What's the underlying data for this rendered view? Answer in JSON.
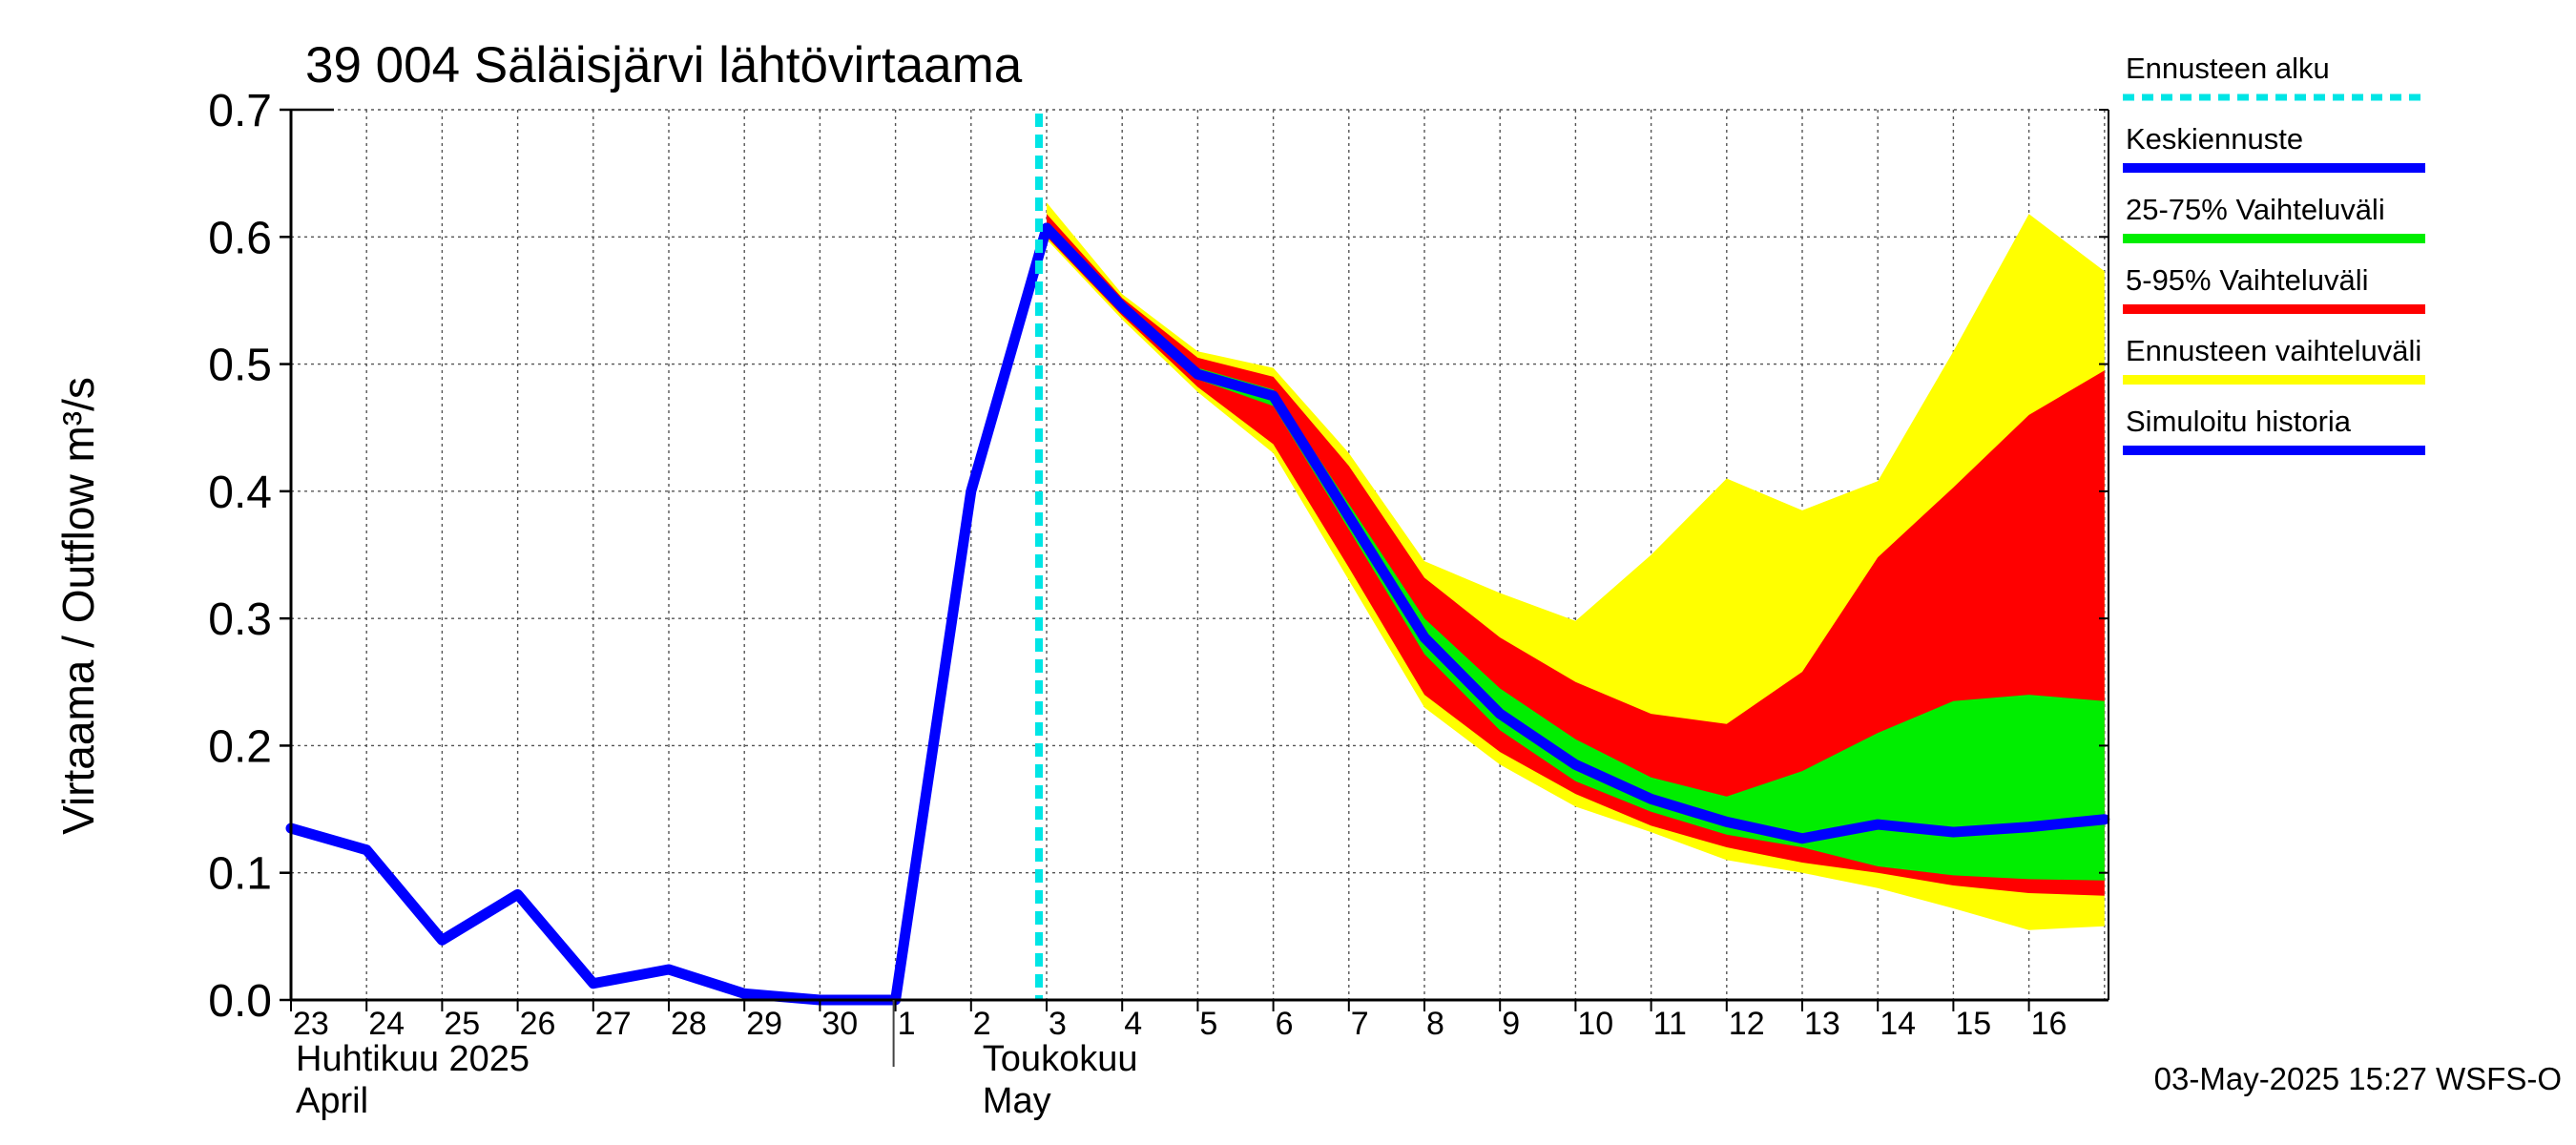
{
  "chart_data": {
    "type": "area",
    "title": "39 004 Säläisjärvi lähtövirtaama",
    "ylabel": "Virtaama / Outflow    m³/s",
    "xlabel": "",
    "ylim": [
      0,
      0.7
    ],
    "yticks": [
      "0.0",
      "0.1",
      "0.2",
      "0.3",
      "0.4",
      "0.5",
      "0.6",
      "0.7"
    ],
    "grid": true,
    "legend_position": "right",
    "x_labels": [
      "23",
      "24",
      "25",
      "26",
      "27",
      "28",
      "29",
      "30",
      "1",
      "2",
      "3",
      "4",
      "5",
      "6",
      "7",
      "8",
      "9",
      "10",
      "11",
      "12",
      "13",
      "14",
      "15",
      "16"
    ],
    "month_labels": [
      {
        "line1": "Huhtikuu  2025",
        "line2": "April"
      },
      {
        "line1": "Toukokuu",
        "line2": "May"
      }
    ],
    "forecast_start": "3",
    "series": [
      {
        "name": "Simuloitu historia",
        "color": "#0000ff",
        "x": [
          "23",
          "24",
          "25",
          "26",
          "27",
          "28",
          "29",
          "30",
          "1",
          "2",
          "3"
        ],
        "values": [
          0.135,
          0.118,
          0.047,
          0.083,
          0.013,
          0.024,
          0.005,
          0.0,
          0.0,
          0.4,
          0.607
        ]
      },
      {
        "name": "Keskiennuste",
        "color": "#0000ff",
        "x": [
          "3",
          "4",
          "5",
          "6",
          "7",
          "8",
          "9",
          "10",
          "11",
          "12",
          "13",
          "14",
          "15",
          "16",
          "17"
        ],
        "values": [
          0.607,
          0.545,
          0.492,
          0.475,
          0.38,
          0.285,
          0.225,
          0.185,
          0.158,
          0.14,
          0.127,
          0.138,
          0.132,
          0.136,
          0.142
        ]
      },
      {
        "name": "25-75% Vaihteluväli",
        "color": "#00ee00",
        "x": [
          "3",
          "4",
          "5",
          "6",
          "7",
          "8",
          "9",
          "10",
          "11",
          "12",
          "13",
          "14",
          "15",
          "16",
          "17"
        ],
        "upper": [
          0.61,
          0.547,
          0.497,
          0.48,
          0.39,
          0.3,
          0.245,
          0.205,
          0.175,
          0.16,
          0.18,
          0.21,
          0.235,
          0.24,
          0.235
        ],
        "lower": [
          0.604,
          0.542,
          0.488,
          0.467,
          0.37,
          0.272,
          0.212,
          0.172,
          0.148,
          0.13,
          0.12,
          0.105,
          0.098,
          0.095,
          0.094
        ]
      },
      {
        "name": "5-95% Vaihteluväli",
        "color": "#ff0000",
        "x": [
          "3",
          "4",
          "5",
          "6",
          "7",
          "8",
          "9",
          "10",
          "11",
          "12",
          "13",
          "14",
          "15",
          "16",
          "17"
        ],
        "upper": [
          0.618,
          0.552,
          0.505,
          0.49,
          0.42,
          0.332,
          0.285,
          0.25,
          0.225,
          0.217,
          0.258,
          0.348,
          0.403,
          0.46,
          0.495
        ],
        "lower": [
          0.6,
          0.538,
          0.482,
          0.437,
          0.34,
          0.24,
          0.195,
          0.162,
          0.137,
          0.12,
          0.108,
          0.1,
          0.09,
          0.084,
          0.082
        ]
      },
      {
        "name": "Ennusteen vaihteluväli",
        "color": "#ffff00",
        "x": [
          "3",
          "4",
          "5",
          "6",
          "7",
          "8",
          "9",
          "10",
          "11",
          "12",
          "13",
          "14",
          "15",
          "16",
          "17"
        ],
        "upper": [
          0.627,
          0.555,
          0.51,
          0.497,
          0.43,
          0.345,
          0.32,
          0.298,
          0.35,
          0.41,
          0.385,
          0.408,
          0.51,
          0.618,
          0.573
        ],
        "lower": [
          0.598,
          0.535,
          0.478,
          0.43,
          0.33,
          0.23,
          0.185,
          0.152,
          0.132,
          0.11,
          0.1,
          0.088,
          0.072,
          0.055,
          0.058
        ]
      }
    ]
  },
  "legend": [
    {
      "label": "Ennusteen alku",
      "color": "#00e5e5",
      "style": "dashed"
    },
    {
      "label": "Keskiennuste",
      "color": "#0000ff",
      "style": "solid"
    },
    {
      "label": "25-75% Vaihteluväli",
      "color": "#00ee00",
      "style": "solid"
    },
    {
      "label": "5-95% Vaihteluväli",
      "color": "#ff0000",
      "style": "solid"
    },
    {
      "label": "Ennusteen vaihteluväli",
      "color": "#ffff00",
      "style": "solid"
    },
    {
      "label": "Simuloitu historia",
      "color": "#0000ff",
      "style": "solid"
    }
  ],
  "footer": "03-May-2025 15:27 WSFS-O"
}
